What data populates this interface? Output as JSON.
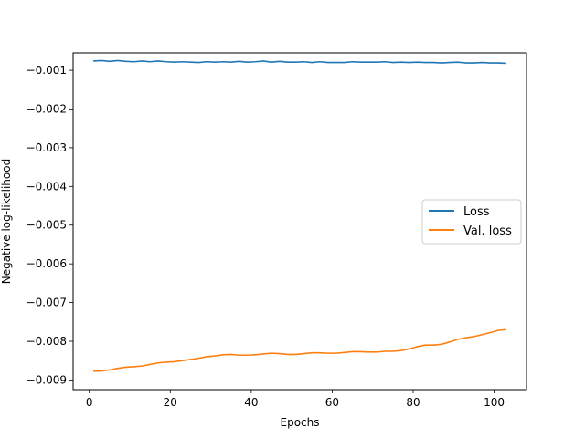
{
  "chart_data": {
    "type": "line",
    "xlabel": "Epochs",
    "ylabel": "Negative log-likelihood",
    "xlim": [
      -4,
      108
    ],
    "ylim": [
      -0.00925,
      -0.00055
    ],
    "xticks": [
      0,
      20,
      40,
      60,
      80,
      100
    ],
    "xtick_labels": [
      "0",
      "20",
      "40",
      "60",
      "80",
      "100"
    ],
    "yticks": [
      -0.009,
      -0.008,
      -0.007,
      -0.006,
      -0.005,
      -0.004,
      -0.003,
      -0.002,
      -0.001
    ],
    "ytick_labels": [
      "−0.009",
      "−0.008",
      "−0.007",
      "−0.006",
      "−0.005",
      "−0.004",
      "−0.003",
      "−0.002",
      "−0.001"
    ],
    "grid": false,
    "legend_position": "center-right",
    "series": [
      {
        "name": "Loss",
        "color": "#1f77b4",
        "x": [
          1,
          3,
          5,
          7,
          9,
          11,
          13,
          15,
          17,
          19,
          21,
          23,
          25,
          27,
          29,
          31,
          33,
          35,
          37,
          39,
          41,
          43,
          45,
          47,
          49,
          51,
          53,
          55,
          57,
          59,
          61,
          63,
          65,
          67,
          69,
          71,
          73,
          75,
          77,
          79,
          81,
          83,
          85,
          87,
          89,
          91,
          93,
          95,
          97,
          99,
          101,
          103
        ],
        "values": [
          -0.00076,
          -0.00075,
          -0.00077,
          -0.00075,
          -0.00077,
          -0.00078,
          -0.00076,
          -0.00078,
          -0.00076,
          -0.00078,
          -0.00079,
          -0.00078,
          -0.00079,
          -0.0008,
          -0.00078,
          -0.00079,
          -0.00078,
          -0.00079,
          -0.00077,
          -0.00079,
          -0.00078,
          -0.00076,
          -0.00079,
          -0.00077,
          -0.00079,
          -0.00079,
          -0.00078,
          -0.0008,
          -0.00078,
          -0.0008,
          -0.0008,
          -0.0008,
          -0.00078,
          -0.00079,
          -0.00079,
          -0.00079,
          -0.00078,
          -0.0008,
          -0.00079,
          -0.0008,
          -0.00079,
          -0.0008,
          -0.0008,
          -0.00081,
          -0.0008,
          -0.00079,
          -0.00081,
          -0.00081,
          -0.0008,
          -0.00081,
          -0.00081,
          -0.00082
        ]
      },
      {
        "name": "Val. loss",
        "color": "#ff7f0e",
        "x": [
          1,
          3,
          5,
          7,
          9,
          11,
          13,
          15,
          17,
          19,
          21,
          23,
          25,
          27,
          29,
          31,
          33,
          35,
          37,
          39,
          41,
          43,
          45,
          47,
          49,
          51,
          53,
          55,
          57,
          59,
          61,
          63,
          65,
          67,
          69,
          71,
          73,
          75,
          77,
          79,
          81,
          83,
          85,
          87,
          89,
          91,
          93,
          95,
          97,
          99,
          101,
          103
        ],
        "values": [
          -0.00877,
          -0.00877,
          -0.00874,
          -0.0087,
          -0.00867,
          -0.00866,
          -0.00864,
          -0.0086,
          -0.00856,
          -0.00854,
          -0.00853,
          -0.0085,
          -0.00847,
          -0.00844,
          -0.0084,
          -0.00838,
          -0.00835,
          -0.00834,
          -0.00836,
          -0.00836,
          -0.00835,
          -0.00833,
          -0.00831,
          -0.00832,
          -0.00834,
          -0.00834,
          -0.00832,
          -0.0083,
          -0.0083,
          -0.00831,
          -0.00831,
          -0.00829,
          -0.00827,
          -0.00827,
          -0.00828,
          -0.00828,
          -0.00826,
          -0.00826,
          -0.00824,
          -0.0082,
          -0.00814,
          -0.0081,
          -0.0081,
          -0.00808,
          -0.00802,
          -0.00795,
          -0.00791,
          -0.00788,
          -0.00783,
          -0.00778,
          -0.00772,
          -0.0077
        ]
      }
    ]
  }
}
